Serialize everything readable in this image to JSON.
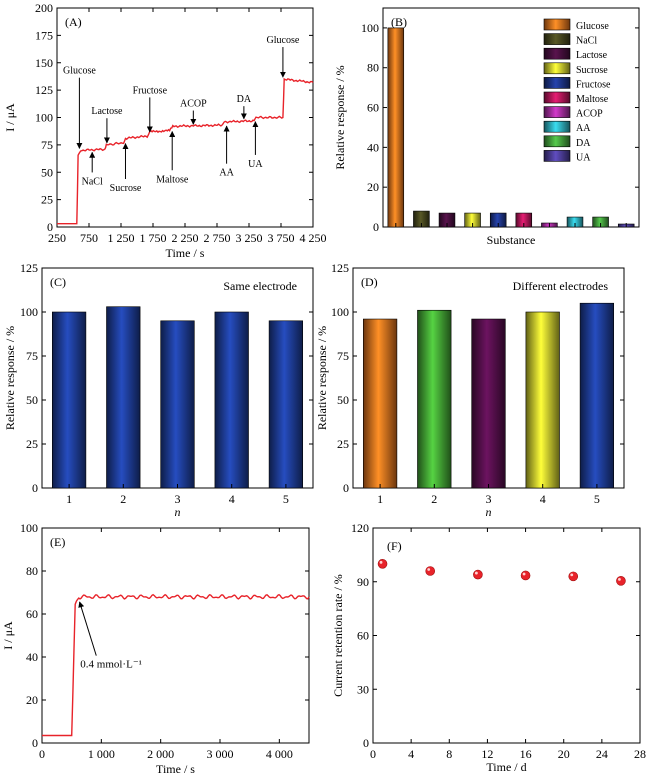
{
  "chart_data": [
    {
      "panel": "(A)",
      "type": "line",
      "xlabel": "Time / s",
      "ylabel": "I / μA",
      "xlim": [
        250,
        4250
      ],
      "ylim": [
        0,
        200
      ],
      "xticks": [
        250,
        750,
        1250,
        1750,
        2250,
        2750,
        3250,
        3750,
        4250
      ],
      "xtick_labels": [
        "250",
        "750",
        "1 250",
        "1 750",
        "2 250",
        "2 750",
        "3 250",
        "3 750",
        "4 250"
      ],
      "yticks": [
        0,
        25,
        50,
        75,
        100,
        125,
        150,
        175,
        200
      ],
      "line_color": "#e8232a",
      "series": [
        {
          "x": [
            250,
            560,
            580,
            620,
            1000,
            1020,
            1290,
            1320,
            1660,
            1700,
            2010,
            2060,
            2830,
            2860,
            3330,
            3360,
            3780,
            3800,
            4250
          ],
          "y": [
            3,
            3,
            65,
            70,
            71,
            75,
            77,
            81,
            83,
            87,
            88,
            92,
            93,
            96,
            97,
            100,
            100,
            135,
            132
          ]
        }
      ],
      "annotations": [
        {
          "text": "Glucose",
          "x": 600,
          "y_label": 140,
          "y_arrow": 70,
          "dir": "down"
        },
        {
          "text": "NaCl",
          "x": 800,
          "y_label": 48,
          "y_arrow": 70,
          "dir": "up"
        },
        {
          "text": "Lactose",
          "x": 1030,
          "y_label": 103,
          "y_arrow": 75,
          "dir": "down"
        },
        {
          "text": "Sucrose",
          "x": 1320,
          "y_label": 42,
          "y_arrow": 78,
          "dir": "up"
        },
        {
          "text": "Fructose",
          "x": 1700,
          "y_label": 122,
          "y_arrow": 85,
          "dir": "down"
        },
        {
          "text": "Maltose",
          "x": 2050,
          "y_label": 50,
          "y_arrow": 89,
          "dir": "up"
        },
        {
          "text": "ACOP",
          "x": 2380,
          "y_label": 110,
          "y_arrow": 92,
          "dir": "down"
        },
        {
          "text": "AA",
          "x": 2900,
          "y_label": 56,
          "y_arrow": 94,
          "dir": "up"
        },
        {
          "text": "DA",
          "x": 3170,
          "y_label": 114,
          "y_arrow": 97,
          "dir": "down"
        },
        {
          "text": "UA",
          "x": 3350,
          "y_label": 64,
          "y_arrow": 98,
          "dir": "up"
        },
        {
          "text": "Glucose",
          "x": 3780,
          "y_label": 168,
          "y_arrow": 135,
          "dir": "down"
        }
      ]
    },
    {
      "panel": "(B)",
      "type": "bar",
      "xlabel": "Substance",
      "ylabel": "Relative response / %",
      "ylim": [
        0,
        110
      ],
      "yticks": [
        0,
        20,
        40,
        60,
        80,
        100
      ],
      "categories": [
        "Glucose",
        "NaCl",
        "Lactose",
        "Sucrose",
        "Fructose",
        "Maltose",
        "ACOP",
        "AA",
        "DA",
        "UA"
      ],
      "values": [
        100,
        8,
        7,
        7,
        7,
        7,
        2,
        5,
        5,
        1.5
      ],
      "colors": [
        "#f07820",
        "#4a4a20",
        "#4a1040",
        "#d8d830",
        "#203890",
        "#c01860",
        "#b030a8",
        "#30b8c8",
        "#48a840",
        "#5040a0"
      ],
      "legend_position": "top-right"
    },
    {
      "panel": "(C)",
      "type": "bar",
      "note": "Same electrode",
      "xlabel": "n",
      "ylabel": "Relative response / %",
      "ylim": [
        0,
        125
      ],
      "yticks": [
        0,
        25,
        50,
        75,
        100,
        125
      ],
      "categories": [
        "1",
        "2",
        "3",
        "4",
        "5"
      ],
      "values": [
        100,
        103,
        95,
        100,
        95
      ],
      "colors": [
        "#2040a0",
        "#2040a0",
        "#2040a0",
        "#2040a0",
        "#2040a0"
      ]
    },
    {
      "panel": "(D)",
      "type": "bar",
      "note": "Different electrodes",
      "xlabel": "n",
      "ylabel": "Relative response / %",
      "ylim": [
        0,
        125
      ],
      "yticks": [
        0,
        25,
        50,
        75,
        100,
        125
      ],
      "categories": [
        "1",
        "2",
        "3",
        "4",
        "5"
      ],
      "values": [
        96,
        101,
        96,
        100,
        105
      ],
      "colors": [
        "#f07820",
        "#48b038",
        "#5a1050",
        "#d8d830",
        "#2040a0"
      ]
    },
    {
      "panel": "(E)",
      "type": "line",
      "xlabel": "Time / s",
      "ylabel": "I / μA",
      "xlim": [
        0,
        4500
      ],
      "ylim": [
        0,
        100
      ],
      "xticks": [
        0,
        1000,
        2000,
        3000,
        4000
      ],
      "xtick_labels": [
        "0",
        "1 000",
        "2 000",
        "3 000",
        "4 000"
      ],
      "yticks": [
        0,
        20,
        40,
        60,
        80,
        100
      ],
      "line_color": "#e8232a",
      "series": [
        {
          "x": [
            0,
            500,
            560,
            620,
            4500
          ],
          "y": [
            3.5,
            3.5,
            64,
            68,
            68
          ]
        }
      ],
      "annotation": {
        "text": "0.4 mmol·L⁻¹",
        "x": 600,
        "y": 67,
        "label_x": 780,
        "label_y": 36
      }
    },
    {
      "panel": "(F)",
      "type": "scatter",
      "xlabel": "Time / d",
      "ylabel": "Current retention rate / %",
      "xlim": [
        0,
        28
      ],
      "ylim": [
        0,
        120
      ],
      "xticks": [
        0,
        4,
        8,
        12,
        16,
        20,
        24,
        28
      ],
      "yticks": [
        0,
        30,
        60,
        90,
        120
      ],
      "x": [
        1,
        6,
        11,
        16,
        21,
        26
      ],
      "y": [
        100,
        96,
        94,
        93.5,
        93,
        90.5
      ],
      "marker_color": "#e8232a"
    }
  ]
}
